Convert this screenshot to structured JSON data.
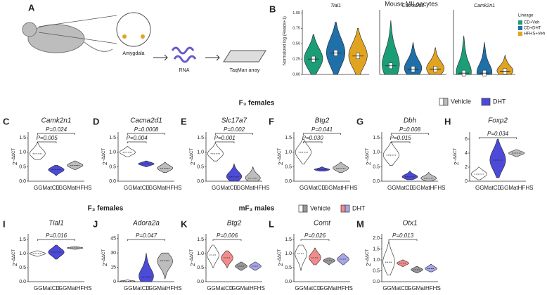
{
  "panel_a": {
    "label": "A",
    "amygdala": "Amygdala",
    "rna": "RNA",
    "array": "TaqMan array"
  },
  "panel_b": {
    "label": "B",
    "title": "Mouse MII oocytes",
    "ylabel": "Normalized log (Reads+1)",
    "legend_title": "Lineage",
    "legend": [
      "CD+Veh",
      "CD+DHT",
      "HFHS+Veh"
    ],
    "colors": [
      "#1b9e77",
      "#1f6fa8",
      "#e0a420"
    ]
  },
  "headings": {
    "row1": "F₃ females",
    "row2_left": "F₃ females",
    "row2_right": "mF₃ males"
  },
  "legends": {
    "females": {
      "names": [
        "Vehicle",
        "DHT"
      ],
      "colors": [
        [
          "#ffffff",
          "#bdbdbd"
        ],
        [
          "#4b4bd8"
        ]
      ]
    },
    "males": {
      "names": [
        "Vehicle",
        "DHT"
      ],
      "colors": [
        [
          "#ffffff",
          "#9a9a9a"
        ],
        [
          "#f28b8b",
          "#a6a6e8"
        ]
      ]
    }
  },
  "chart_data": [
    {
      "type": "violin",
      "title": "Tial1",
      "ylim": [
        0,
        1.05
      ],
      "yticks": [
        {
          "value": 0,
          "label": "0.00"
        },
        {
          "value": 0.25,
          "label": "0.25"
        },
        {
          "value": 0.5,
          "label": "0.50"
        },
        {
          "value": 0.75,
          "label": "0.75"
        },
        {
          "value": 1,
          "label": "1.00"
        }
      ],
      "colors": [
        "#1b9e77",
        "#1f6fa8",
        "#e0a420"
      ],
      "medians": [
        0.25,
        0.35,
        0.3
      ],
      "mins": [
        0,
        0,
        0
      ],
      "maxs": [
        0.65,
        0.85,
        0.75
      ]
    },
    {
      "type": "violin",
      "title": "Cacna2d1",
      "ylim": [
        0,
        0.6
      ],
      "colors": [
        "#1b9e77",
        "#1f6fa8",
        "#e0a420"
      ],
      "medians": [
        0.08,
        0.05,
        0.05
      ],
      "mins": [
        0,
        0,
        0
      ],
      "maxs": [
        0.5,
        0.3,
        0.25
      ]
    },
    {
      "type": "violin",
      "title": "Camk2n1",
      "ylim": [
        0,
        1
      ],
      "colors": [
        "#1b9e77",
        "#1f6fa8",
        "#e0a420"
      ],
      "medians": [
        0.02,
        0.02,
        0.05
      ],
      "mins": [
        0,
        0,
        0
      ],
      "maxs": [
        0.6,
        0.5,
        0.3
      ]
    },
    {
      "type": "violin",
      "panel": "C",
      "title": "Camk2n1",
      "ylabel_base": "2",
      "ylabel_sup": "−ΔΔCT",
      "ylim": [
        0,
        1.7
      ],
      "yticks": [
        {
          "value": 0,
          "label": "0.0"
        },
        0.5,
        {
          "value": 1,
          "label": "1.0"
        },
        1.5
      ],
      "categories": [
        "GGMatCD",
        null,
        "GGMatHFHS"
      ],
      "colors": [
        "#ffffff",
        "#4b4bd8",
        "#bdbdbd"
      ],
      "medians": [
        0.95,
        0.4,
        0.55
      ],
      "mins": [
        0.75,
        0.2,
        0.4
      ],
      "maxs": [
        1.35,
        0.55,
        0.7
      ],
      "pvalues": [
        "P=0.024",
        "P=0.005"
      ]
    },
    {
      "type": "violin",
      "panel": "D",
      "title": "Cacna2d1",
      "ylabel_base": "2",
      "ylabel_sup": "−ΔΔCT",
      "ylim": [
        0,
        1.7
      ],
      "yticks": [
        {
          "value": 0,
          "label": "0.0"
        },
        0.5,
        {
          "value": 1,
          "label": "1.0"
        },
        1.5
      ],
      "categories": [
        "GGMatCD",
        null,
        "GGMatHFHS"
      ],
      "colors": [
        "#ffffff",
        "#4b4bd8",
        "#bdbdbd"
      ],
      "medians": [
        1,
        0.6,
        0.45
      ],
      "mins": [
        0.85,
        0.5,
        0.3
      ],
      "maxs": [
        1.2,
        0.7,
        0.65
      ],
      "pvalues": [
        "P=0.0008",
        "P=0.004"
      ]
    },
    {
      "type": "violin",
      "panel": "E",
      "title": "Slc17a7",
      "ylabel_base": "2",
      "ylabel_sup": "−ΔΔCT",
      "ylim": [
        0,
        1.7
      ],
      "yticks": [
        {
          "value": 0,
          "label": "0.0"
        },
        0.5,
        {
          "value": 1,
          "label": "1.0"
        },
        1.5
      ],
      "categories": [
        "GGMatCD",
        null,
        "GGMatHFHS"
      ],
      "colors": [
        "#ffffff",
        "#4b4bd8",
        "#bdbdbd"
      ],
      "medians": [
        0.95,
        0.15,
        0.1
      ],
      "mins": [
        0.7,
        0,
        0
      ],
      "maxs": [
        1.3,
        0.6,
        0.5
      ],
      "pvalues": [
        "P=0.002",
        "P=0.001"
      ]
    },
    {
      "type": "violin",
      "panel": "F",
      "title": "Btg2",
      "ylabel_base": "2",
      "ylabel_sup": "−ΔΔCT",
      "ylim": [
        0,
        1.7
      ],
      "yticks": [
        {
          "value": 0,
          "label": "0.0"
        },
        0.5,
        {
          "value": 1,
          "label": "1.0"
        },
        1.5
      ],
      "categories": [
        "GGMatCD",
        null,
        "GGMatHFHS"
      ],
      "colors": [
        "#ffffff",
        "#4b4bd8",
        "#bdbdbd"
      ],
      "medians": [
        1,
        0.4,
        0.45
      ],
      "mins": [
        0.6,
        0.35,
        0.3
      ],
      "maxs": [
        1.45,
        0.5,
        0.65
      ],
      "pvalues": [
        "P=0.041",
        "P=0.030"
      ]
    },
    {
      "type": "violin",
      "panel": "G",
      "title": "Dbh",
      "ylabel_base": "2",
      "ylabel_sup": "−ΔΔCT",
      "ylim": [
        0,
        1.7
      ],
      "yticks": [
        {
          "value": 0,
          "label": "0.0"
        },
        0.5,
        {
          "value": 1,
          "label": "1.0"
        },
        1.5
      ],
      "categories": [
        "GGMatCD",
        null,
        "GGMatHFHS"
      ],
      "colors": [
        "#ffffff",
        "#4b4bd8",
        "#bdbdbd"
      ],
      "medians": [
        0.9,
        0.15,
        0.1
      ],
      "mins": [
        0.55,
        0.05,
        0
      ],
      "maxs": [
        1.35,
        0.35,
        0.3
      ],
      "pvalues": [
        "P=0.008",
        "P=0.015"
      ]
    },
    {
      "type": "violin",
      "panel": "H",
      "title": "Foxp2",
      "ylabel_base": "2",
      "ylabel_sup": "−ΔΔCT",
      "ylim": [
        0,
        7
      ],
      "yticks": [
        0,
        2,
        4,
        6
      ],
      "categories": [
        "GGMatCD",
        null,
        "GGMatHFHS"
      ],
      "colors": [
        "#ffffff",
        "#4b4bd8",
        "#bdbdbd"
      ],
      "medians": [
        1,
        3,
        4
      ],
      "mins": [
        0.2,
        0.5,
        3.5
      ],
      "maxs": [
        2,
        6,
        4.5
      ],
      "pvalues": [
        "P=0.034"
      ]
    },
    {
      "type": "violin",
      "panel": "I",
      "title": "Tial1",
      "ylabel_base": "2",
      "ylabel_sup": "−ΔΔCT",
      "ylim": [
        0,
        1.7
      ],
      "yticks": [
        {
          "value": 0,
          "label": "0.0"
        },
        0.5,
        {
          "value": 1,
          "label": "1.0"
        },
        1.5
      ],
      "categories": [
        "GGMatCD",
        null,
        "GGMatHFHS"
      ],
      "colors": [
        "#ffffff",
        "#4b4bd8",
        "#bdbdbd"
      ],
      "medians": [
        1,
        1.05,
        1.2
      ],
      "mins": [
        0.9,
        0.8,
        1.15
      ],
      "maxs": [
        1.1,
        1.3,
        1.25
      ],
      "pvalues": [
        "P=0.016"
      ]
    },
    {
      "type": "violin",
      "panel": "J",
      "title": "Adora2a",
      "ylabel_base": "2",
      "ylabel_sup": "−ΔΔCT",
      "ylim": [
        0,
        50
      ],
      "yticks": [
        0,
        15,
        30,
        45
      ],
      "categories": [
        "GGMatCD",
        null,
        "GGMatHFHS"
      ],
      "colors": [
        "#ffffff",
        "#4b4bd8",
        "#bdbdbd"
      ],
      "medians": [
        0.5,
        5,
        22
      ],
      "mins": [
        0,
        0,
        3
      ],
      "maxs": [
        2,
        30,
        30
      ],
      "pvalues": [
        "P=0.047"
      ]
    },
    {
      "type": "violin",
      "panel": "K",
      "title": "Btg2",
      "ylabel_base": "2",
      "ylabel_sup": "−ΔΔCT",
      "ylim": [
        0,
        1.7
      ],
      "yticks": [
        {
          "value": 0,
          "label": "0.0"
        },
        0.5,
        {
          "value": 1,
          "label": "1.0"
        },
        1.5
      ],
      "categories": [
        "GGMatCD",
        null,
        "GGMatHFHS",
        null
      ],
      "colors": [
        "#ffffff",
        "#f28b8b",
        "#9a9a9a",
        "#a6a6e8"
      ],
      "medians": [
        0.95,
        0.85,
        0.55,
        0.55
      ],
      "mins": [
        0.5,
        0.5,
        0.4,
        0.4
      ],
      "maxs": [
        1.3,
        1.1,
        0.7,
        0.7
      ],
      "pvalues": [
        "P=0.006"
      ]
    },
    {
      "type": "violin",
      "panel": "L",
      "title": "Comt",
      "ylabel_base": "2",
      "ylabel_sup": "−ΔΔCT",
      "ylim": [
        0,
        1.7
      ],
      "yticks": [
        {
          "value": 0,
          "label": "0.0"
        },
        0.5,
        {
          "value": 1,
          "label": "1.0"
        },
        1.5
      ],
      "categories": [
        "GGMatCD",
        null,
        "GGMatHFHS",
        null
      ],
      "colors": [
        "#ffffff",
        "#f28b8b",
        "#9a9a9a",
        "#a6a6e8"
      ],
      "medians": [
        1,
        0.85,
        0.75,
        0.8
      ],
      "mins": [
        0.4,
        0.6,
        0.6,
        0.6
      ],
      "maxs": [
        1.3,
        1.2,
        0.85,
        1
      ],
      "pvalues": [
        "P=0.026"
      ]
    },
    {
      "type": "violin",
      "panel": "M",
      "title": "Otx1",
      "ylabel_base": "2",
      "ylabel_sup": "−ΔΔCT",
      "ylim": [
        0,
        2.2
      ],
      "yticks": [
        {
          "value": 0,
          "label": "0.0"
        },
        0.5,
        {
          "value": 1,
          "label": "1.0"
        },
        1.5,
        {
          "value": 2,
          "label": "2.0"
        }
      ],
      "categories": [
        "GGMatCD",
        null,
        "GGMatHFHS",
        null
      ],
      "colors": [
        "#ffffff",
        "#f28b8b",
        "#9a9a9a",
        "#a6a6e8"
      ],
      "medians": [
        0.9,
        0.85,
        0.55,
        0.6
      ],
      "mins": [
        0.3,
        0.7,
        0.4,
        0.45
      ],
      "maxs": [
        1.85,
        1,
        0.7,
        0.8
      ],
      "pvalues": [
        "P=0.013"
      ]
    }
  ]
}
